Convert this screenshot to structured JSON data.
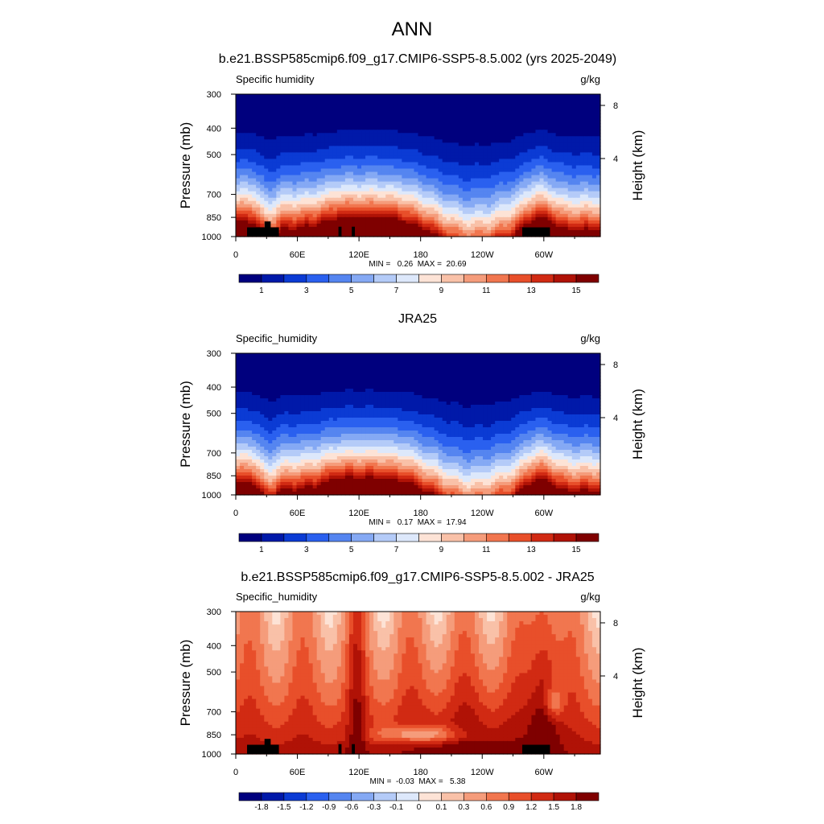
{
  "figure_title": "ANN",
  "chart_data": [
    {
      "type": "heatmap",
      "title": "b.e21.BSSP585cmip6.f09_g17.CMIP6-SSP5-8.5.002 (yrs 2025-2049)",
      "left_label": "Specific humidity",
      "right_label": "g/kg",
      "ylabel": "Pressure (mb)",
      "ylabel_right": "Height (km)",
      "x_ticks": [
        "0",
        "60E",
        "120E",
        "180",
        "120W",
        "60W"
      ],
      "x_tick_positions_deg": [
        0,
        60,
        120,
        180,
        240,
        300
      ],
      "xlim": [
        0,
        355
      ],
      "y_ticks": [
        "300",
        "400",
        "500",
        "700",
        "850",
        "1000"
      ],
      "y_tick_values_mb": [
        300,
        400,
        500,
        700,
        850,
        1000
      ],
      "ylim_mb": [
        1000,
        300
      ],
      "height_ticks": [
        "8",
        "4"
      ],
      "height_tick_values_km": [
        8,
        4
      ],
      "min_max_text": "MIN =   0.26  MAX =  20.69",
      "min": 0.26,
      "max": 20.69,
      "colorbar_labels": [
        "1",
        "3",
        "5",
        "7",
        "9",
        "11",
        "13",
        "15"
      ],
      "colorbar_levels": [
        0,
        1,
        2,
        3,
        4,
        5,
        6,
        7,
        8,
        9,
        10,
        11,
        12,
        13,
        14,
        15,
        16
      ],
      "mode": "sequential",
      "topography": true
    },
    {
      "type": "heatmap",
      "title": "JRA25",
      "left_label": "Specific_humidity",
      "right_label": "g/kg",
      "ylabel": "Pressure (mb)",
      "ylabel_right": "Height (km)",
      "x_ticks": [
        "0",
        "60E",
        "120E",
        "180",
        "120W",
        "60W"
      ],
      "x_tick_positions_deg": [
        0,
        60,
        120,
        180,
        240,
        300
      ],
      "xlim": [
        0,
        355
      ],
      "y_ticks": [
        "300",
        "400",
        "500",
        "700",
        "850",
        "1000"
      ],
      "y_tick_values_mb": [
        300,
        400,
        500,
        700,
        850,
        1000
      ],
      "ylim_mb": [
        1000,
        300
      ],
      "height_ticks": [
        "8",
        "4"
      ],
      "height_tick_values_km": [
        8,
        4
      ],
      "min_max_text": "MIN =   0.17  MAX =  17.94",
      "min": 0.17,
      "max": 17.94,
      "colorbar_labels": [
        "1",
        "3",
        "5",
        "7",
        "9",
        "11",
        "13",
        "15"
      ],
      "colorbar_levels": [
        0,
        1,
        2,
        3,
        4,
        5,
        6,
        7,
        8,
        9,
        10,
        11,
        12,
        13,
        14,
        15,
        16
      ],
      "mode": "sequential",
      "topography": false
    },
    {
      "type": "heatmap",
      "title": "b.e21.BSSP585cmip6.f09_g17.CMIP6-SSP5-8.5.002 - JRA25",
      "left_label": "Specific_humidity",
      "right_label": "g/kg",
      "ylabel": "Pressure (mb)",
      "ylabel_right": "Height (km)",
      "x_ticks": [
        "0",
        "60E",
        "120E",
        "180",
        "120W",
        "60W"
      ],
      "x_tick_positions_deg": [
        0,
        60,
        120,
        180,
        240,
        300
      ],
      "xlim": [
        0,
        355
      ],
      "y_ticks": [
        "300",
        "400",
        "500",
        "700",
        "850",
        "1000"
      ],
      "y_tick_values_mb": [
        300,
        400,
        500,
        700,
        850,
        1000
      ],
      "ylim_mb": [
        1000,
        300
      ],
      "height_ticks": [
        "8",
        "4"
      ],
      "height_tick_values_km": [
        8,
        4
      ],
      "min_max_text": "MIN =  -0.03  MAX =   5.38",
      "min": -0.03,
      "max": 5.38,
      "colorbar_labels": [
        "-1.8",
        "-1.5",
        "-1.2",
        "-0.9",
        "-0.6",
        "-0.3",
        "-0.1",
        "0",
        "0.1",
        "0.3",
        "0.6",
        "0.9",
        "1.2",
        "1.5",
        "1.8"
      ],
      "colorbar_levels": [
        -2.1,
        -1.8,
        -1.5,
        -1.2,
        -0.9,
        -0.6,
        -0.3,
        -0.1,
        0,
        0.1,
        0.3,
        0.6,
        0.9,
        1.2,
        1.5,
        1.8,
        2.1
      ],
      "mode": "difference",
      "topography": true
    }
  ],
  "palette": [
    "#00007e",
    "#0019a9",
    "#0b3bd4",
    "#2a60ef",
    "#5585f0",
    "#85a9f4",
    "#b4cbf8",
    "#dde8fb",
    "#fde3d6",
    "#f9c1a8",
    "#f59c7b",
    "#f1764f",
    "#e84f2a",
    "#d12a13",
    "#b01206",
    "#7f0000"
  ],
  "topo_color": "#000000"
}
